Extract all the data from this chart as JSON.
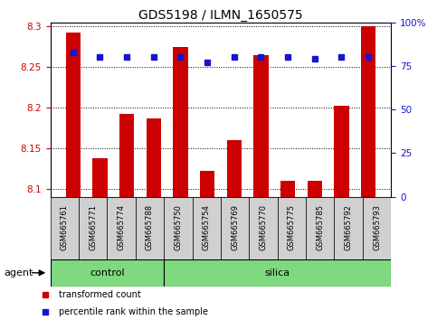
{
  "title": "GDS5198 / ILMN_1650575",
  "samples": [
    "GSM665761",
    "GSM665771",
    "GSM665774",
    "GSM665788",
    "GSM665750",
    "GSM665754",
    "GSM665769",
    "GSM665770",
    "GSM665775",
    "GSM665785",
    "GSM665792",
    "GSM665793"
  ],
  "transformed_count": [
    8.293,
    8.138,
    8.192,
    8.187,
    8.275,
    8.122,
    8.16,
    8.265,
    8.11,
    8.11,
    8.202,
    8.3
  ],
  "percentile_rank": [
    83,
    80,
    80,
    80,
    80,
    77,
    80,
    80,
    80,
    79,
    80,
    80
  ],
  "groups": [
    {
      "label": "control",
      "start": 0,
      "end": 4
    },
    {
      "label": "silica",
      "start": 4,
      "end": 12
    }
  ],
  "bar_color": "#cc0000",
  "dot_color": "#1515cc",
  "ylim_left": [
    8.09,
    8.305
  ],
  "ylim_right": [
    0,
    100
  ],
  "yticks_left": [
    8.1,
    8.15,
    8.2,
    8.25,
    8.3
  ],
  "yticks_right": [
    0,
    25,
    50,
    75,
    100
  ],
  "ytick_labels_right": [
    "0",
    "25",
    "50",
    "75",
    "100%"
  ],
  "grid_color": "#000000",
  "bar_width": 0.55,
  "agent_label": "agent",
  "group_bg_color": "#7FD97F",
  "group_border_color": "#000000",
  "legend_items": [
    {
      "color": "#cc0000",
      "label": "transformed count"
    },
    {
      "color": "#1515cc",
      "label": "percentile rank within the sample"
    }
  ],
  "ylabel_left_color": "#cc0000",
  "ylabel_right_color": "#1515cc",
  "base_value": 8.09,
  "cell_bg_color": "#d0d0d0",
  "title_fontsize": 10,
  "tick_fontsize": 7.5,
  "label_fontsize": 6,
  "legend_fontsize": 7
}
